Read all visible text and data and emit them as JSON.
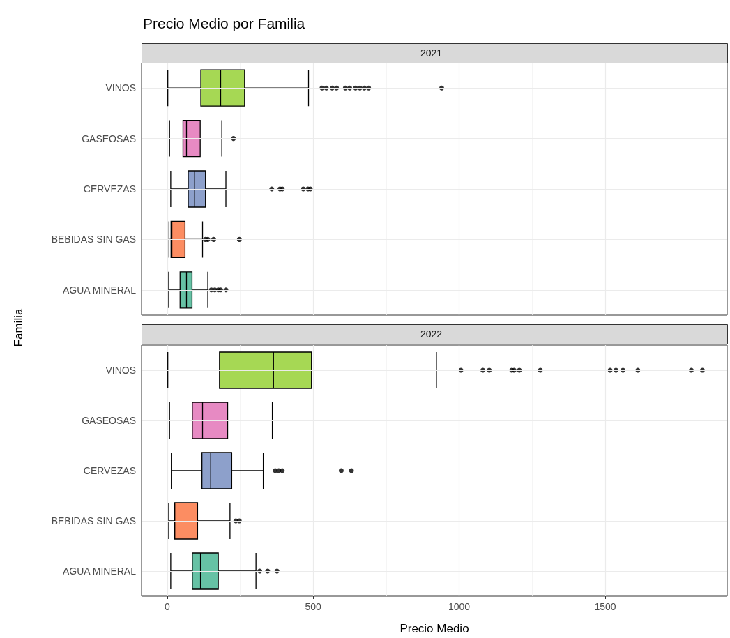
{
  "chart_data": [
    {
      "type": "box",
      "title": "Precio Medio por Familia",
      "subtitle": "2021",
      "ylabel": "Familia",
      "orientation": "horizontal",
      "categories": [
        "VINOS",
        "GASEOSAS",
        "CERVEZAS",
        "BEBIDAS SIN GAS",
        "AGUA MINERAL"
      ],
      "colors": [
        "#a6d854",
        "#e78ac3",
        "#8da0cb",
        "#fc8d62",
        "#66c2a5"
      ],
      "boxes": [
        {
          "low": 2,
          "q1": 115,
          "median": 183,
          "q3": 265,
          "high": 484,
          "outliers": [
            530,
            545,
            565,
            580,
            610,
            625,
            645,
            660,
            675,
            690,
            940
          ]
        },
        {
          "low": 8,
          "q1": 54,
          "median": 66,
          "q3": 113,
          "high": 187,
          "outliers": [
            227
          ]
        },
        {
          "low": 12,
          "q1": 72,
          "median": 94,
          "q3": 131,
          "high": 201,
          "outliers": [
            358,
            386,
            394,
            466,
            482,
            490
          ]
        },
        {
          "low": 6,
          "q1": 13,
          "median": 16,
          "q3": 61,
          "high": 121,
          "outliers": [
            131,
            139,
            159,
            247
          ]
        },
        {
          "low": 5,
          "q1": 44,
          "median": 66,
          "q3": 85,
          "high": 139,
          "outliers": [
            151,
            163,
            175,
            183,
            201
          ]
        }
      ],
      "xlim": [
        -88,
        1918
      ],
      "xticks": [
        0,
        500,
        1000,
        1500
      ],
      "tick_labels": "y",
      "grid": true
    },
    {
      "type": "box",
      "subtitle": "2022",
      "xlabel": "Precio Medio",
      "orientation": "horizontal",
      "categories": [
        "VINOS",
        "GASEOSAS",
        "CERVEZAS",
        "BEBIDAS SIN GAS",
        "AGUA MINERAL"
      ],
      "colors": [
        "#a6d854",
        "#e78ac3",
        "#8da0cb",
        "#fc8d62",
        "#66c2a5"
      ],
      "boxes": [
        {
          "low": 2,
          "q1": 179,
          "median": 364,
          "q3": 494,
          "high": 922,
          "outliers": [
            1006,
            1081,
            1103,
            1180,
            1188,
            1206,
            1278,
            1517,
            1537,
            1561,
            1612,
            1795,
            1833
          ]
        },
        {
          "low": 8,
          "q1": 86,
          "median": 121,
          "q3": 207,
          "high": 360
        },
        {
          "low": 14,
          "q1": 119,
          "median": 149,
          "q3": 221,
          "high": 329,
          "outliers": [
            370,
            382,
            394,
            596,
            631
          ]
        },
        {
          "low": 5,
          "q1": 24,
          "median": 26,
          "q3": 104,
          "high": 215,
          "outliers": [
            235,
            247
          ]
        },
        {
          "low": 12,
          "q1": 86,
          "median": 114,
          "q3": 175,
          "high": 304,
          "outliers": [
            317,
            344,
            376
          ]
        }
      ],
      "xlim": [
        -88,
        1918
      ],
      "xticks": [
        0,
        500,
        1000,
        1500
      ],
      "grid": true
    }
  ]
}
